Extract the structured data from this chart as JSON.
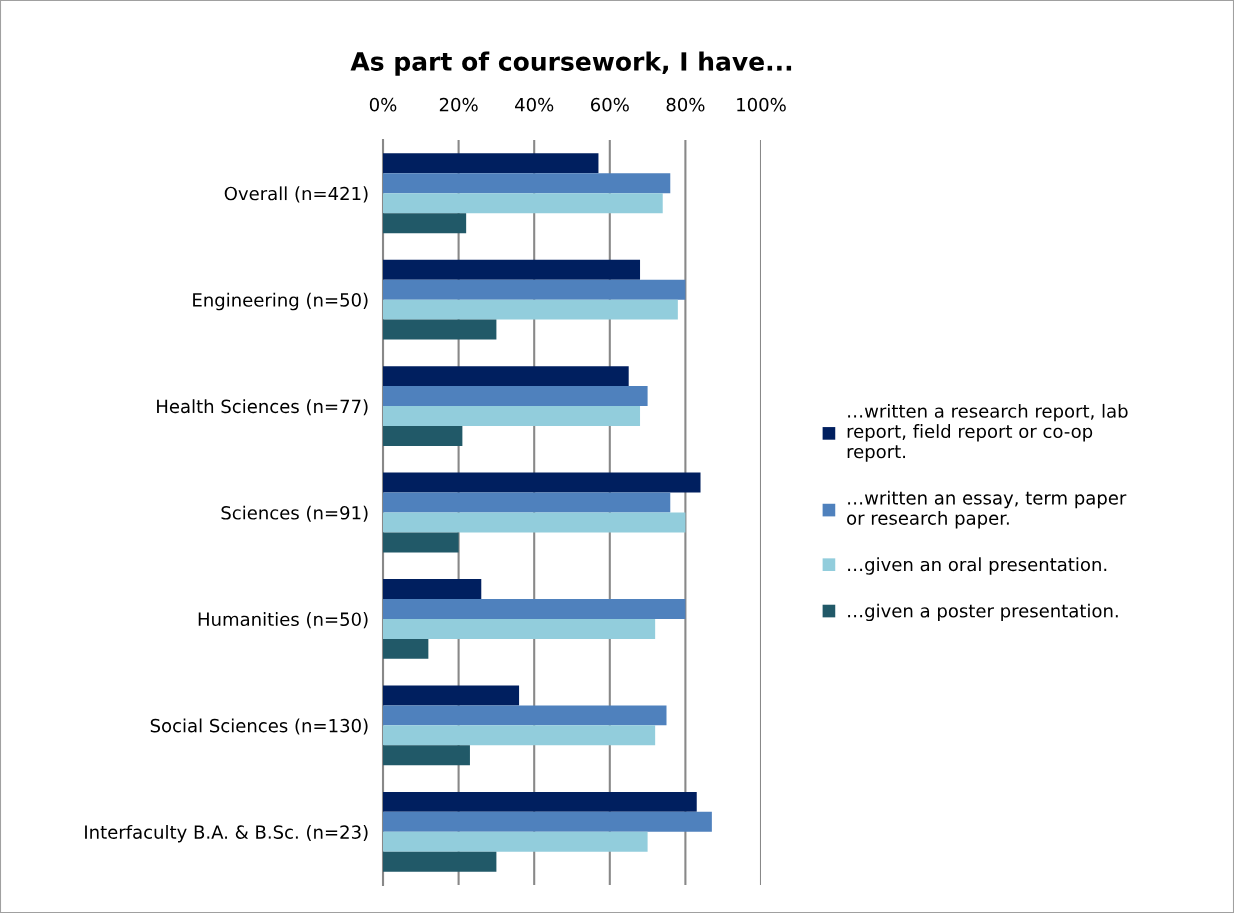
{
  "chart_data": {
    "type": "bar",
    "orientation": "horizontal",
    "title": "As part of coursework, I have...",
    "categories": [
      "Overall (n=421)",
      "Engineering (n=50)",
      "Health Sciences (n=77)",
      "Sciences (n=91)",
      "Humanities (n=50)",
      "Social Sciences (n=130)",
      "Interfaculty B.A. & B.Sc. (n=23)"
    ],
    "series": [
      {
        "name": "…written a research report, lab report, field report or co-op report.",
        "color": "#001f5f",
        "values": [
          57,
          68,
          65,
          84,
          26,
          36,
          83
        ]
      },
      {
        "name": "…written an essay, term paper or research paper.",
        "color": "#4f81bd",
        "values": [
          76,
          80,
          70,
          76,
          80,
          75,
          87
        ]
      },
      {
        "name": "…given an oral presentation.",
        "color": "#92cddc",
        "values": [
          74,
          78,
          68,
          80,
          72,
          72,
          70
        ]
      },
      {
        "name": "…given a poster presentation.",
        "color": "#215968",
        "values": [
          22,
          30,
          21,
          20,
          12,
          23,
          30
        ]
      }
    ],
    "xlim": [
      0,
      100
    ],
    "xticks": [
      {
        "value": 0,
        "label": "0%"
      },
      {
        "value": 20,
        "label": "20%"
      },
      {
        "value": 40,
        "label": "40%"
      },
      {
        "value": 60,
        "label": "60%"
      },
      {
        "value": 80,
        "label": "80%"
      },
      {
        "value": 100,
        "label": "100%"
      }
    ],
    "grid": "x",
    "legend": "right"
  }
}
